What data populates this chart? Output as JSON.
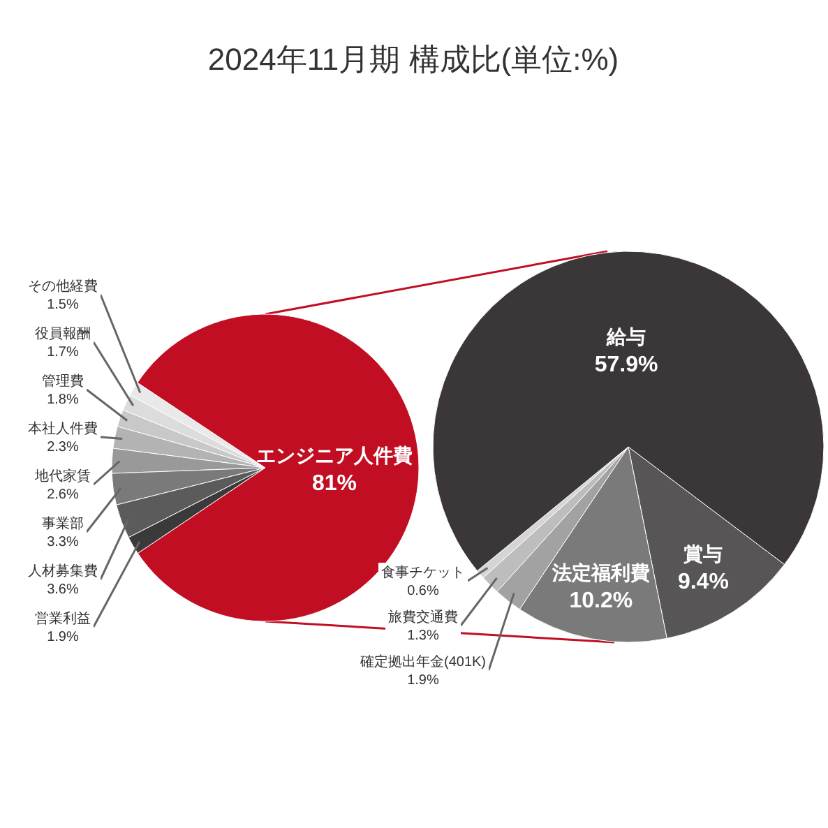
{
  "chart_data": [
    {
      "type": "pie",
      "title": "2024年11月期 構成比(単位:%)",
      "categories": [
        "その他経費",
        "役員報酬",
        "管理費",
        "本社人件費",
        "地代家賃",
        "事業部",
        "人材募集費",
        "営業利益",
        "エンジニア人件費"
      ],
      "values": [
        1.5,
        1.7,
        1.8,
        2.3,
        2.6,
        3.3,
        3.6,
        1.9,
        81
      ],
      "value_labels": [
        "1.5%",
        "1.7%",
        "1.8%",
        "2.3%",
        "2.6%",
        "3.3%",
        "3.6%",
        "1.9%",
        "81%"
      ],
      "colors": [
        "#e9e9e9",
        "#dcdcdc",
        "#c8c8c8",
        "#b3b3b3",
        "#999999",
        "#7a7a7a",
        "#5b5b5b",
        "#3a3a3a",
        "#c20e23"
      ]
    },
    {
      "type": "pie",
      "categories": [
        "賞与",
        "法定福利費",
        "確定拠出年金(401K)",
        "旅費交通費",
        "食事チケット",
        "給与"
      ],
      "values": [
        9.4,
        10.2,
        1.9,
        1.3,
        0.6,
        57.9
      ],
      "value_labels": [
        "9.4%",
        "10.2%",
        "1.9%",
        "1.3%",
        "0.6%",
        "57.9%"
      ],
      "colors": [
        "#575556",
        "#7b7a7a",
        "#a2a2a2",
        "#bdbdbd",
        "#d5d5d5",
        "#3b3738"
      ]
    }
  ]
}
